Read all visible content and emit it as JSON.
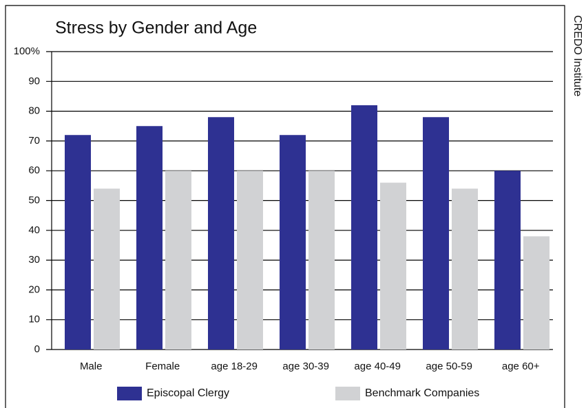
{
  "chart_data": {
    "type": "bar",
    "title": "Stress by Gender and Age",
    "side_note": "CREDO Institute",
    "categories": [
      "Male",
      "Female",
      "age 18-29",
      "age 30-39",
      "age 40-49",
      "age 50-59",
      "age 60+"
    ],
    "series": [
      {
        "name": "Episcopal Clergy",
        "color": "#2e3192",
        "values": [
          72,
          75,
          78,
          72,
          82,
          78,
          60
        ]
      },
      {
        "name": "Benchmark Companies",
        "color": "#d1d2d4",
        "values": [
          54,
          60,
          60,
          60,
          56,
          54,
          38
        ]
      }
    ],
    "ylim": [
      0,
      100
    ],
    "yticks": [
      0,
      10,
      20,
      30,
      40,
      50,
      60,
      70,
      80,
      90,
      {
        "value": 100,
        "label": "100%"
      }
    ],
    "grid": true
  }
}
